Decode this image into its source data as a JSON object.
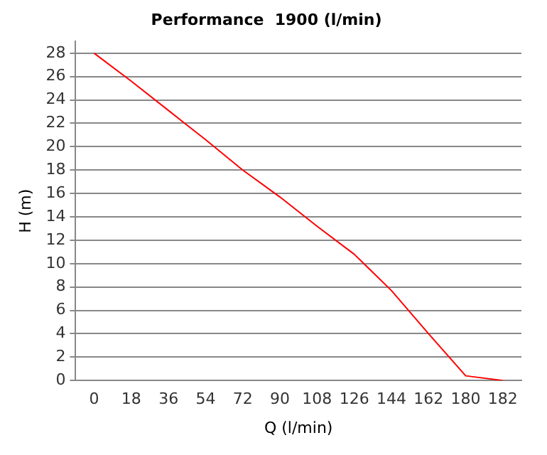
{
  "chart_data": {
    "type": "line",
    "title": "Performance  1900 (l/min)",
    "xlabel": "Q (l/min)",
    "ylabel": "H (m)",
    "categories": [
      "0",
      "18",
      "36",
      "54",
      "72",
      "90",
      "108",
      "126",
      "144",
      "162",
      "180",
      "182"
    ],
    "series": [
      {
        "color": "#ff0000",
        "values": [
          28,
          25.6,
          23.1,
          20.6,
          18.0,
          15.7,
          13.2,
          10.8,
          7.7,
          4.0,
          0.4,
          0
        ]
      }
    ],
    "ylim": [
      0,
      29
    ],
    "yticks": [
      0,
      2,
      4,
      6,
      8,
      10,
      12,
      14,
      16,
      18,
      20,
      22,
      24,
      26,
      28
    ],
    "grid": "y",
    "legend": false,
    "marker": "none",
    "line_style": "solid"
  }
}
